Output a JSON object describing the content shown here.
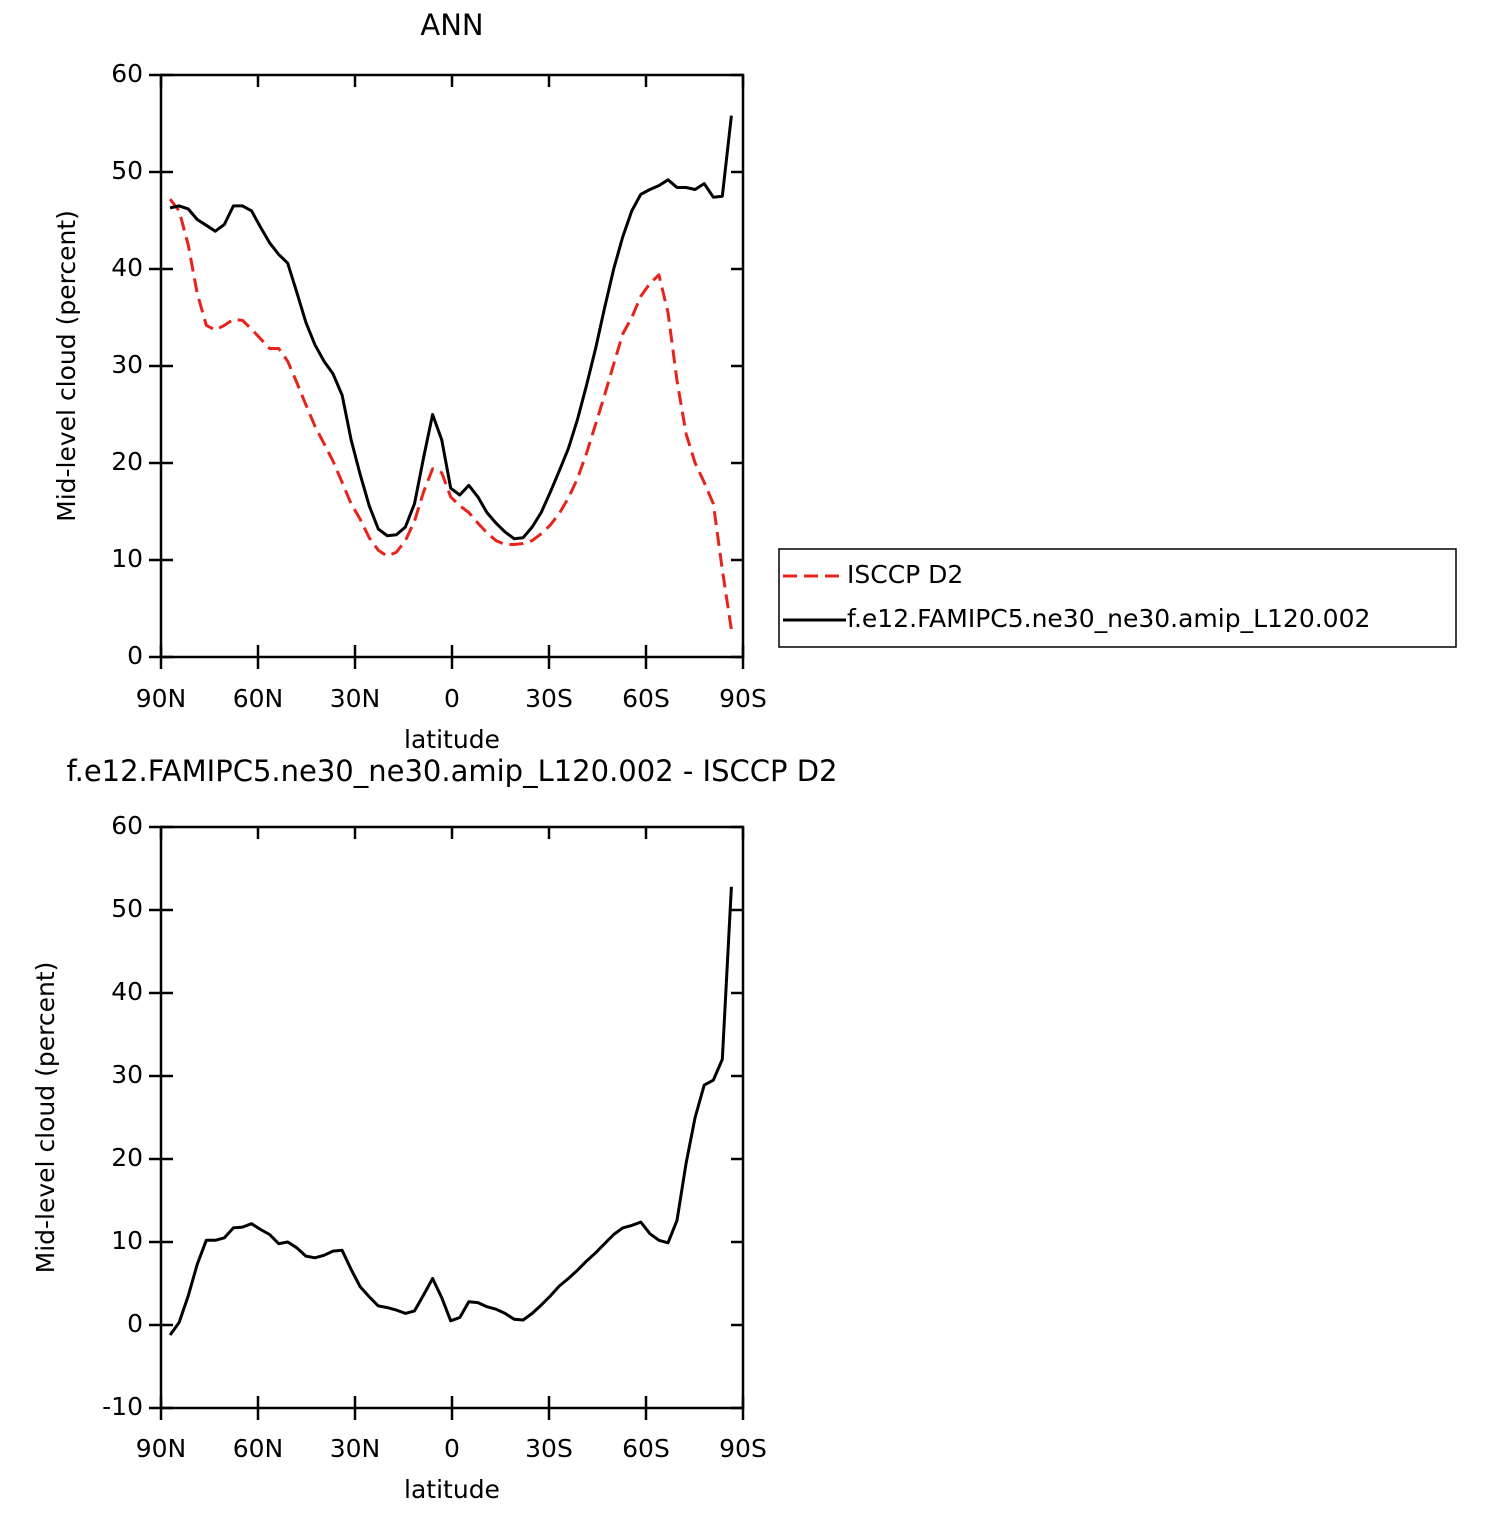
{
  "chart_data": [
    {
      "type": "line",
      "title": "ANN",
      "xlabel": "latitude",
      "ylabel": "Mid-level cloud (percent)",
      "x": [
        87.2,
        84.4,
        81.6,
        78.8,
        76.0,
        73.2,
        70.4,
        67.6,
        64.8,
        62.0,
        59.2,
        56.4,
        53.6,
        50.8,
        48.0,
        45.2,
        42.4,
        39.6,
        36.8,
        34.0,
        31.2,
        28.4,
        25.6,
        22.8,
        20.0,
        17.2,
        14.4,
        11.6,
        8.8,
        6.0,
        3.2,
        0.4,
        -2.4,
        -5.2,
        -8.0,
        -10.8,
        -13.6,
        -16.4,
        -19.2,
        -22.0,
        -24.8,
        -27.6,
        -30.4,
        -33.2,
        -36.0,
        -38.8,
        -41.6,
        -44.4,
        -47.2,
        -50.0,
        -52.8,
        -55.6,
        -58.4,
        -61.2,
        -64.0,
        -66.8,
        -69.6,
        -72.4,
        -75.2,
        -78.0,
        -80.8,
        -83.6,
        -86.4
      ],
      "series": [
        {
          "name": "ISCCP D2",
          "color": "#e8231c",
          "line_style": "dashed",
          "values": [
            47.2,
            46.0,
            42.5,
            37.5,
            34.2,
            33.7,
            34.2,
            34.8,
            34.7,
            33.8,
            32.8,
            31.8,
            31.8,
            30.5,
            28.3,
            26.0,
            23.8,
            22.0,
            20.2,
            18.0,
            15.8,
            14.2,
            12.3,
            11.0,
            10.4,
            10.8,
            12.0,
            14.0,
            17.0,
            19.4,
            19.0,
            16.5,
            15.6,
            14.9,
            13.8,
            12.8,
            12.0,
            11.6,
            11.6,
            11.7,
            12.0,
            12.7,
            13.6,
            14.8,
            16.4,
            18.4,
            21.0,
            24.0,
            27.0,
            30.2,
            33.3,
            35.0,
            37.2,
            38.5,
            39.4,
            35.5,
            28.5,
            23.0,
            20.0,
            18.0,
            15.8,
            9.0,
            2.8
          ]
        },
        {
          "name": "f.e12.FAMIPC5.ne30_ne30.amip_L120.002",
          "color": "#000000",
          "line_style": "solid",
          "values": [
            46.3,
            46.5,
            46.2,
            45.1,
            44.5,
            43.9,
            44.6,
            46.5,
            46.5,
            46.0,
            44.3,
            42.7,
            41.5,
            40.6,
            37.6,
            34.5,
            32.2,
            30.5,
            29.2,
            27.0,
            22.4,
            18.8,
            15.6,
            13.2,
            12.5,
            12.6,
            13.4,
            15.8,
            20.5,
            25.0,
            22.4,
            17.4,
            16.7,
            17.7,
            16.5,
            14.9,
            13.8,
            12.9,
            12.2,
            12.3,
            13.4,
            14.9,
            17.0,
            19.2,
            21.5,
            24.5,
            28.0,
            31.8,
            36.0,
            40.0,
            43.3,
            46.0,
            47.7,
            48.2,
            48.6,
            49.2,
            48.4,
            48.4,
            48.2,
            48.8,
            47.4,
            47.5,
            55.8
          ]
        }
      ],
      "xlim": [
        90,
        -90
      ],
      "xticks": [
        {
          "value": 90,
          "label": "90N"
        },
        {
          "value": 60,
          "label": "60N"
        },
        {
          "value": 30,
          "label": "30N"
        },
        0,
        {
          "value": -30,
          "label": "30S"
        },
        {
          "value": -60,
          "label": "60S"
        },
        {
          "value": -90,
          "label": "90S"
        }
      ],
      "ylim": [
        0,
        60
      ],
      "yticks": [
        0,
        10,
        20,
        30,
        40,
        50,
        60
      ],
      "legend": "right"
    },
    {
      "type": "line",
      "title": "f.e12.FAMIPC5.ne30_ne30.amip_L120.002 - ISCCP D2",
      "xlabel": "latitude",
      "ylabel": "Mid-level cloud (percent)",
      "x": [
        87.2,
        84.4,
        81.6,
        78.8,
        76.0,
        73.2,
        70.4,
        67.6,
        64.8,
        62.0,
        59.2,
        56.4,
        53.6,
        50.8,
        48.0,
        45.2,
        42.4,
        39.6,
        36.8,
        34.0,
        31.2,
        28.4,
        25.6,
        22.8,
        20.0,
        17.2,
        14.4,
        11.6,
        8.8,
        6.0,
        3.2,
        0.4,
        -2.4,
        -5.2,
        -8.0,
        -10.8,
        -13.6,
        -16.4,
        -19.2,
        -22.0,
        -24.8,
        -27.6,
        -30.4,
        -33.2,
        -36.0,
        -38.8,
        -41.6,
        -44.4,
        -47.2,
        -50.0,
        -52.8,
        -55.6,
        -58.4,
        -61.2,
        -64.0,
        -66.8,
        -69.6,
        -72.4,
        -75.2,
        -78.0,
        -80.8,
        -83.6,
        -86.4
      ],
      "color": "#000000",
      "values": [
        -1.2,
        0.3,
        3.5,
        7.3,
        10.2,
        10.2,
        10.5,
        11.7,
        11.8,
        12.2,
        11.5,
        10.9,
        9.8,
        10.0,
        9.3,
        8.3,
        8.1,
        8.4,
        8.9,
        9.0,
        6.7,
        4.6,
        3.4,
        2.3,
        2.1,
        1.8,
        1.4,
        1.7,
        3.6,
        5.6,
        3.3,
        0.5,
        0.9,
        2.8,
        2.7,
        2.2,
        1.9,
        1.4,
        0.7,
        0.6,
        1.4,
        2.4,
        3.5,
        4.7,
        5.6,
        6.6,
        7.7,
        8.7,
        9.8,
        10.9,
        11.7,
        12.0,
        12.4,
        11.0,
        10.2,
        9.9,
        12.6,
        19.5,
        25.0,
        28.9,
        29.5,
        32.0,
        52.8
      ],
      "xlim": [
        90,
        -90
      ],
      "xticks": [
        {
          "value": 90,
          "label": "90N"
        },
        {
          "value": 60,
          "label": "60N"
        },
        {
          "value": 30,
          "label": "30N"
        },
        0,
        {
          "value": -30,
          "label": "30S"
        },
        {
          "value": -60,
          "label": "60S"
        },
        {
          "value": -90,
          "label": "90S"
        }
      ],
      "ylim": [
        -10,
        60
      ],
      "yticks": [
        -10,
        0,
        10,
        20,
        30,
        40,
        50,
        60
      ]
    }
  ]
}
